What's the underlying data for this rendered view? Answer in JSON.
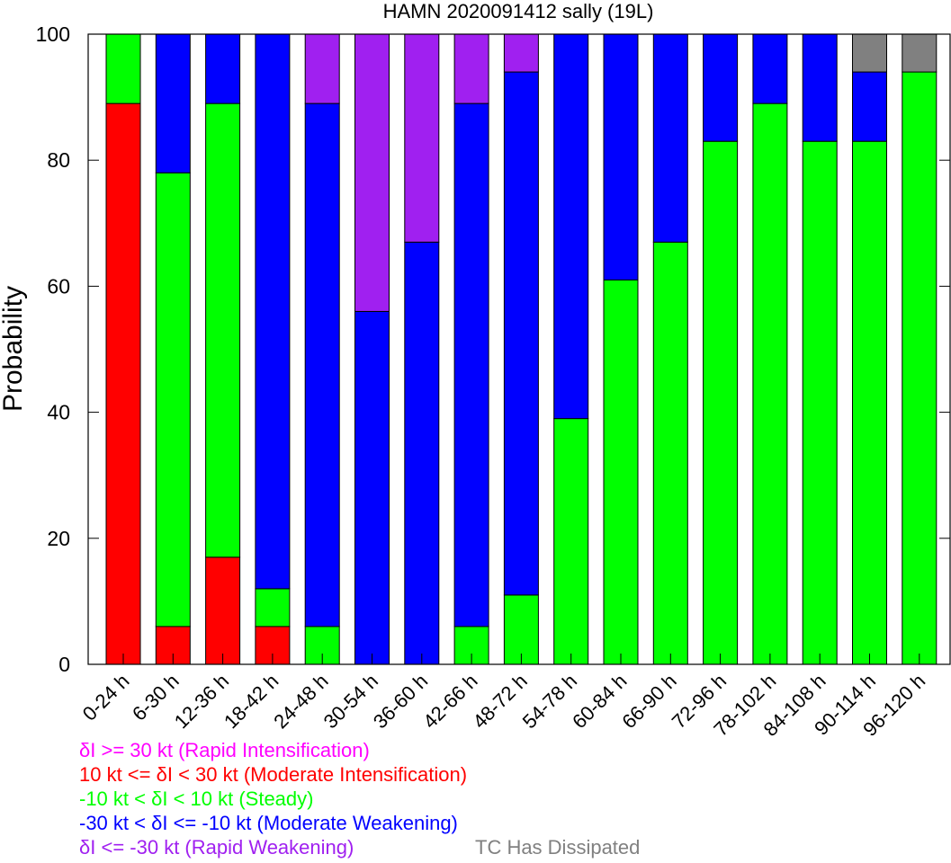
{
  "chart_data": {
    "type": "bar",
    "stacked": true,
    "title": "HAMN 2020091412 sally (19L)",
    "xlabel": "",
    "ylabel": "Probability",
    "ylim": [
      0,
      100
    ],
    "yticks": [
      0,
      20,
      40,
      60,
      80,
      100
    ],
    "grid": false,
    "legend_placement": "bottom",
    "categories": [
      "0-24 h",
      "6-30 h",
      "12-36 h",
      "18-42 h",
      "24-48 h",
      "30-54 h",
      "36-60 h",
      "42-66 h",
      "48-72 h",
      "54-78 h",
      "60-84 h",
      "66-90 h",
      "72-96 h",
      "78-102 h",
      "84-108 h",
      "90-114 h",
      "96-120 h"
    ],
    "series": [
      {
        "name": "δI >= 30 kt (Rapid Intensification)",
        "color": "#ff00ff",
        "values": [
          0,
          0,
          0,
          0,
          0,
          0,
          0,
          0,
          0,
          0,
          0,
          0,
          0,
          0,
          0,
          0,
          0
        ]
      },
      {
        "name": "10 kt <= δI < 30 kt (Moderate Intensification)",
        "color": "#ff0000",
        "values": [
          89,
          6,
          17,
          6,
          0,
          0,
          0,
          0,
          0,
          0,
          0,
          0,
          0,
          0,
          0,
          0,
          0
        ]
      },
      {
        "name": "-10 kt < δI < 10 kt (Steady)",
        "color": "#00ff00",
        "values": [
          11,
          72,
          72,
          6,
          6,
          0,
          0,
          6,
          11,
          39,
          61,
          67,
          83,
          89,
          83,
          83,
          94
        ]
      },
      {
        "name": "-30 kt < δI <= -10 kt (Moderate Weakening)",
        "color": "#0000ff",
        "values": [
          0,
          22,
          11,
          88,
          83,
          56,
          67,
          83,
          83,
          61,
          39,
          33,
          17,
          11,
          17,
          11,
          0
        ]
      },
      {
        "name": "δI <= -30 kt (Rapid Weakening)",
        "color": "#a020f0",
        "values": [
          0,
          0,
          0,
          0,
          11,
          44,
          33,
          11,
          6,
          0,
          0,
          0,
          0,
          0,
          0,
          0,
          0
        ]
      },
      {
        "name": "TC Has Dissipated",
        "color": "#808080",
        "values": [
          0,
          0,
          0,
          0,
          0,
          0,
          0,
          0,
          0,
          0,
          0,
          0,
          0,
          0,
          0,
          6,
          6
        ]
      }
    ]
  },
  "legend": {
    "rapid_intensification": "δI >= 30 kt (Rapid Intensification)",
    "moderate_intensification": "10 kt <= δI < 30 kt (Moderate Intensification)",
    "steady": "-10 kt < δI < 10 kt (Steady)",
    "moderate_weakening": "-30 kt < δI <= -10 kt (Moderate Weakening)",
    "rapid_weakening": "δI <= -30 kt (Rapid Weakening)",
    "dissipated": "TC Has Dissipated"
  },
  "colors": {
    "rapid_intensification": "#ff00ff",
    "moderate_intensification": "#ff0000",
    "steady": "#00ff00",
    "moderate_weakening": "#0000ff",
    "rapid_weakening": "#a020f0",
    "dissipated": "#808080"
  }
}
